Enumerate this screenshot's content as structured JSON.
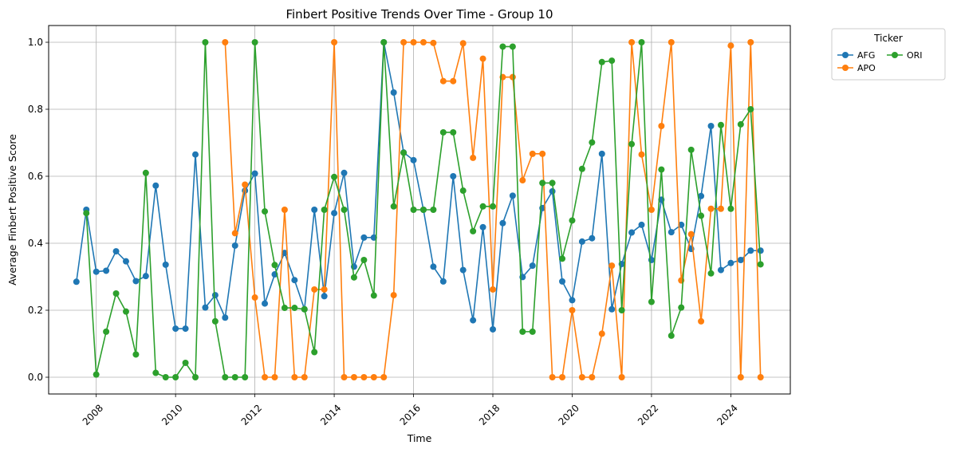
{
  "chart_data": {
    "type": "line",
    "title": "Finbert Positive Trends Over Time - Group 10",
    "xlabel": "Time",
    "ylabel": "Average Finbert Positive Score",
    "xlim": [
      2006.8,
      2025.5
    ],
    "ylim": [
      -0.05,
      1.05
    ],
    "x_ticks": [
      2008,
      2010,
      2012,
      2014,
      2016,
      2018,
      2020,
      2022,
      2024
    ],
    "y_ticks": [
      0.0,
      0.2,
      0.4,
      0.6,
      0.8,
      1.0
    ],
    "grid": true,
    "legend_title": "Ticker",
    "legend_position": "outside-right-top",
    "series": [
      {
        "name": "AFG",
        "color": "#1f77b4",
        "x": [
          2007.5,
          2007.75,
          2008.0,
          2008.25,
          2008.5,
          2008.75,
          2009.0,
          2009.25,
          2009.5,
          2009.75,
          2010.0,
          2010.25,
          2010.5,
          2010.75,
          2011.0,
          2011.25,
          2011.5,
          2011.75,
          2012.0,
          2012.25,
          2012.5,
          2012.75,
          2013.0,
          2013.25,
          2013.5,
          2013.75,
          2014.0,
          2014.25,
          2014.5,
          2014.75,
          2015.0,
          2015.25,
          2015.5,
          2015.75,
          2016.0,
          2016.25,
          2016.5,
          2016.75,
          2017.0,
          2017.25,
          2017.5,
          2017.75,
          2018.0,
          2018.25,
          2018.5,
          2018.75,
          2019.0,
          2019.25,
          2019.5,
          2019.75,
          2020.0,
          2020.25,
          2020.5,
          2020.75,
          2021.0,
          2021.25,
          2021.5,
          2021.75,
          2022.0,
          2022.25,
          2022.5,
          2022.75,
          2023.0,
          2023.25,
          2023.5,
          2023.75,
          2024.0,
          2024.25,
          2024.5,
          2024.75
        ],
        "values": [
          0.285,
          0.5,
          0.315,
          0.318,
          0.376,
          0.346,
          0.287,
          0.302,
          0.572,
          0.336,
          0.145,
          0.145,
          0.665,
          0.208,
          0.245,
          0.178,
          0.393,
          0.557,
          0.608,
          0.22,
          0.307,
          0.371,
          0.29,
          0.203,
          0.5,
          0.242,
          0.49,
          0.61,
          0.33,
          0.417,
          0.417,
          1.0,
          0.85,
          0.671,
          0.648,
          0.5,
          0.33,
          0.286,
          0.6,
          0.32,
          0.17,
          0.448,
          0.143,
          0.46,
          0.542,
          0.299,
          0.333,
          0.505,
          0.555,
          0.286,
          0.23,
          0.405,
          0.415,
          0.667,
          0.203,
          0.338,
          0.432,
          0.455,
          0.35,
          0.53,
          0.433,
          0.455,
          0.383,
          0.541,
          0.75,
          0.32,
          0.341,
          0.35,
          0.378,
          0.378
        ]
      },
      {
        "name": "APO",
        "color": "#ff7f0e",
        "x": [
          2011.25,
          2011.5,
          2011.75,
          2012.0,
          2012.25,
          2012.5,
          2012.75,
          2013.0,
          2013.25,
          2013.5,
          2013.75,
          2014.0,
          2014.25,
          2014.5,
          2014.75,
          2015.0,
          2015.25,
          2015.5,
          2015.75,
          2016.0,
          2016.25,
          2016.5,
          2016.75,
          2017.0,
          2017.25,
          2017.5,
          2017.75,
          2018.0,
          2018.25,
          2018.5,
          2018.75,
          2019.0,
          2019.25,
          2019.5,
          2019.75,
          2020.0,
          2020.25,
          2020.5,
          2020.75,
          2021.0,
          2021.25,
          2021.5,
          2021.75,
          2022.0,
          2022.25,
          2022.5,
          2022.75,
          2023.0,
          2023.25,
          2023.5,
          2023.75,
          2024.0,
          2024.25,
          2024.5,
          2024.75
        ],
        "values": [
          1.0,
          0.43,
          0.575,
          0.238,
          0.0,
          0.0,
          0.5,
          0.0,
          0.0,
          0.262,
          0.262,
          1.0,
          0.0,
          0.0,
          0.0,
          0.0,
          0.0,
          0.245,
          1.0,
          1.0,
          1.0,
          0.998,
          0.884,
          0.884,
          0.997,
          0.655,
          0.951,
          0.262,
          0.896,
          0.896,
          0.588,
          0.667,
          0.667,
          0.0,
          0.0,
          0.2,
          0.0,
          0.0,
          0.13,
          0.333,
          0.0,
          1.0,
          0.665,
          0.5,
          0.75,
          1.0,
          0.289,
          0.427,
          0.167,
          0.503,
          0.503,
          0.99,
          0.0,
          1.0,
          0.0
        ]
      },
      {
        "name": "ORI",
        "color": "#2ca02c",
        "x": [
          2007.75,
          2008.0,
          2008.25,
          2008.5,
          2008.75,
          2009.0,
          2009.25,
          2009.5,
          2009.75,
          2010.0,
          2010.25,
          2010.5,
          2010.75,
          2011.0,
          2011.25,
          2011.5,
          2011.75,
          2012.0,
          2012.25,
          2012.5,
          2012.75,
          2013.0,
          2013.25,
          2013.5,
          2013.75,
          2014.0,
          2014.25,
          2014.5,
          2014.75,
          2015.0,
          2015.25,
          2015.5,
          2015.75,
          2016.0,
          2016.25,
          2016.5,
          2016.75,
          2017.0,
          2017.25,
          2017.5,
          2017.75,
          2018.0,
          2018.25,
          2018.5,
          2018.75,
          2019.0,
          2019.25,
          2019.5,
          2019.75,
          2020.0,
          2020.25,
          2020.5,
          2020.75,
          2021.0,
          2021.25,
          2021.5,
          2021.75,
          2022.0,
          2022.25,
          2022.5,
          2022.75,
          2023.0,
          2023.25,
          2023.5,
          2023.75,
          2024.0,
          2024.25,
          2024.5,
          2024.75
        ],
        "values": [
          0.49,
          0.008,
          0.136,
          0.25,
          0.196,
          0.068,
          0.61,
          0.013,
          0.0,
          0.0,
          0.043,
          0.0,
          1.0,
          0.167,
          0.0,
          0.0,
          0.0,
          1.0,
          0.495,
          0.335,
          0.207,
          0.207,
          0.203,
          0.075,
          0.5,
          0.598,
          0.5,
          0.298,
          0.35,
          0.244,
          1.0,
          0.51,
          0.67,
          0.5,
          0.5,
          0.5,
          0.731,
          0.731,
          0.557,
          0.436,
          0.51,
          0.51,
          0.987,
          0.987,
          0.136,
          0.136,
          0.58,
          0.58,
          0.354,
          0.468,
          0.622,
          0.701,
          0.941,
          0.945,
          0.2,
          0.696,
          1.0,
          0.225,
          0.62,
          0.124,
          0.208,
          0.679,
          0.482,
          0.31,
          0.753,
          0.503,
          0.755,
          0.8,
          0.337
        ]
      }
    ]
  }
}
